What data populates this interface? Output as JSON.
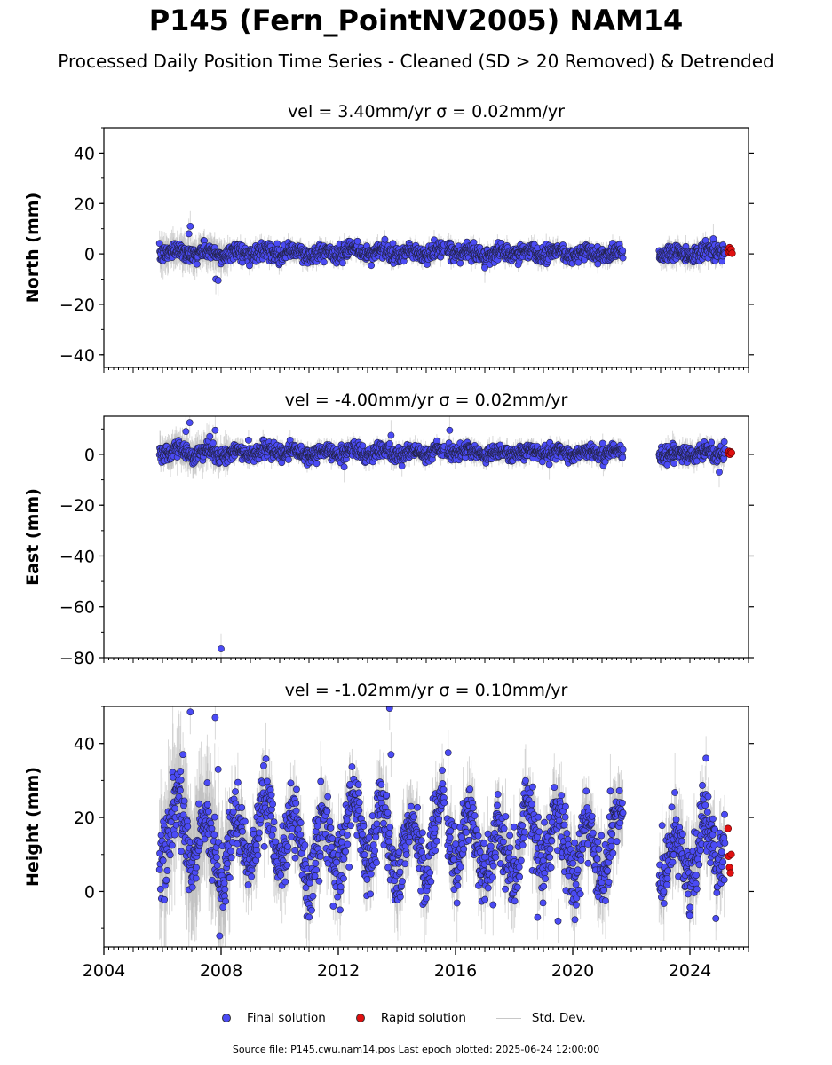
{
  "title": "P145 (Fern_PointNV2005) NAM14",
  "subtitle": "Processed Daily Position Time Series - Cleaned (SD > 20 Removed) & Detrended",
  "footer": "Source file: P145.cwu.nam14.pos  Last epoch plotted: 2025-06-24 12:00:00",
  "legend": [
    {
      "label": "Final solution",
      "color": "#4b4bf5"
    },
    {
      "label": "Rapid solution",
      "color": "#e01010"
    },
    {
      "label": "Std. Dev.",
      "color": "#c8c8c8"
    }
  ],
  "colors": {
    "final": "#4b4bf5",
    "rapid": "#e01010",
    "stddev": "#b9b9b9",
    "outline": "#222244"
  },
  "chart_data": [
    {
      "type": "scatter",
      "title": "vel = 3.40mm/yr   σ = 0.02mm/yr",
      "ylabel": "North (mm)",
      "xlim": [
        2004.0,
        2026.0
      ],
      "ylim": [
        -45,
        50
      ],
      "yticks": [
        -40,
        -20,
        0,
        20,
        40
      ],
      "ytick_labels": [
        "−40",
        "−20",
        "0",
        "20",
        "40"
      ],
      "segments": [
        {
          "start": 2005.9,
          "end": 2015.62,
          "mean": 0.5,
          "amp": 1.2,
          "noise": 1.6,
          "sd": 3
        },
        {
          "start": 2015.72,
          "end": 2021.72,
          "mean": 0.4,
          "amp": 1.0,
          "noise": 1.6,
          "sd": 3
        },
        {
          "start": 2022.95,
          "end": 2025.2,
          "mean": 0.5,
          "amp": 1.0,
          "noise": 1.7,
          "sd": 3.5
        }
      ],
      "outliers": [
        {
          "x": 2006.95,
          "y": 11
        },
        {
          "x": 2007.82,
          "y": -10
        },
        {
          "x": 2007.9,
          "y": -10.5
        },
        {
          "x": 2006.9,
          "y": 8
        },
        {
          "x": 2017.0,
          "y": -5.5
        },
        {
          "x": 2024.8,
          "y": 6
        }
      ],
      "rapid": [
        {
          "x": 2025.3,
          "y": 1.5
        },
        {
          "x": 2025.32,
          "y": 0.5
        },
        {
          "x": 2025.35,
          "y": 2.5
        },
        {
          "x": 2025.38,
          "y": 0.8
        },
        {
          "x": 2025.41,
          "y": 1.8
        },
        {
          "x": 2025.44,
          "y": 0.2
        }
      ]
    },
    {
      "type": "scatter",
      "title": "vel = -4.00mm/yr   σ = 0.02mm/yr",
      "ylabel": "East (mm)",
      "xlim": [
        2004.0,
        2026.0
      ],
      "ylim": [
        -80,
        15
      ],
      "yticks": [
        -80,
        -60,
        -40,
        -20,
        0
      ],
      "ytick_labels": [
        "−80",
        "−60",
        "−40",
        "−20",
        "0"
      ],
      "segments": [
        {
          "start": 2005.9,
          "end": 2015.62,
          "mean": 0.7,
          "amp": 1.0,
          "noise": 1.5,
          "sd": 3
        },
        {
          "start": 2015.72,
          "end": 2021.72,
          "mean": 0.8,
          "amp": 0.9,
          "noise": 1.4,
          "sd": 3
        },
        {
          "start": 2022.95,
          "end": 2025.2,
          "mean": 0.4,
          "amp": 1.0,
          "noise": 1.6,
          "sd": 3.5
        }
      ],
      "outliers": [
        {
          "x": 2006.93,
          "y": 12.5
        },
        {
          "x": 2006.8,
          "y": 9
        },
        {
          "x": 2007.8,
          "y": 9.5
        },
        {
          "x": 2008.0,
          "y": -76.5
        },
        {
          "x": 2013.8,
          "y": 7.5
        },
        {
          "x": 2015.8,
          "y": 9.5
        },
        {
          "x": 2012.2,
          "y": -5
        },
        {
          "x": 2019.2,
          "y": -4
        },
        {
          "x": 2025.0,
          "y": -7
        }
      ],
      "rapid": [
        {
          "x": 2025.3,
          "y": 0.5
        },
        {
          "x": 2025.33,
          "y": 1.2
        },
        {
          "x": 2025.36,
          "y": 0.0
        },
        {
          "x": 2025.39,
          "y": 1.0
        },
        {
          "x": 2025.42,
          "y": 0.6
        }
      ]
    },
    {
      "type": "scatter",
      "title": "vel = -1.02mm/yr   σ = 0.10mm/yr",
      "ylabel": "Height (mm)",
      "xlim": [
        2004.0,
        2026.0
      ],
      "ylim": [
        -15,
        50
      ],
      "yticks": [
        0,
        20,
        40
      ],
      "ytick_labels": [
        "0",
        "20",
        "40"
      ],
      "xticks": [
        2004,
        2008,
        2012,
        2016,
        2020,
        2024
      ],
      "xtick_labels": [
        "2004",
        "2008",
        "2012",
        "2016",
        "2020",
        "2024"
      ],
      "segments": [
        {
          "start": 2005.9,
          "end": 2015.62,
          "mean": 14,
          "amp": 8,
          "noise": 4.5,
          "sd": 8
        },
        {
          "start": 2015.72,
          "end": 2021.72,
          "mean": 13,
          "amp": 8,
          "noise": 4.5,
          "sd": 8
        },
        {
          "start": 2022.95,
          "end": 2025.2,
          "mean": 12,
          "amp": 8,
          "noise": 4.5,
          "sd": 8
        }
      ],
      "outliers": [
        {
          "x": 2006.95,
          "y": 48.5
        },
        {
          "x": 2007.8,
          "y": 47
        },
        {
          "x": 2013.75,
          "y": 49.5
        },
        {
          "x": 2013.8,
          "y": 37
        },
        {
          "x": 2007.95,
          "y": -12
        },
        {
          "x": 2006.7,
          "y": 37
        },
        {
          "x": 2007.9,
          "y": 33
        },
        {
          "x": 2015.75,
          "y": 37.5
        },
        {
          "x": 2024.55,
          "y": 36
        },
        {
          "x": 2018.8,
          "y": -7
        },
        {
          "x": 2019.5,
          "y": -8
        }
      ],
      "rapid": [
        {
          "x": 2025.3,
          "y": 17
        },
        {
          "x": 2025.32,
          "y": 9.5
        },
        {
          "x": 2025.35,
          "y": 6.5
        },
        {
          "x": 2025.38,
          "y": 5
        },
        {
          "x": 2025.41,
          "y": 10
        }
      ]
    }
  ]
}
